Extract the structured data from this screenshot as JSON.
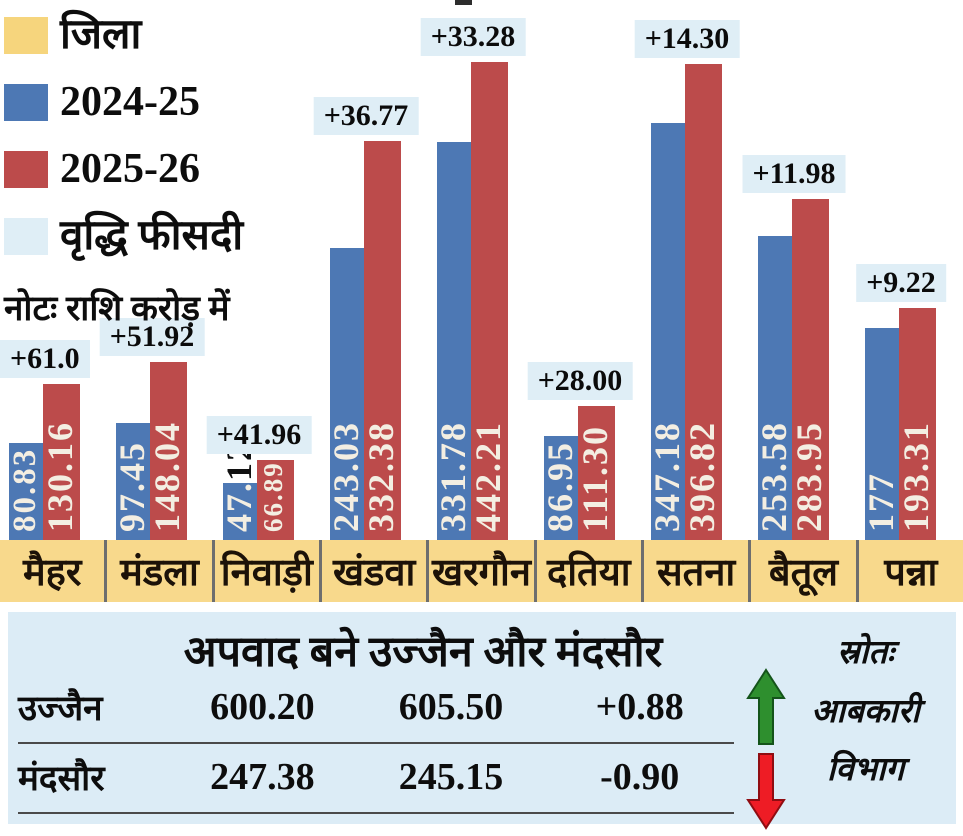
{
  "legend": {
    "items": [
      {
        "label": "जिला",
        "color": "#f6d57d"
      },
      {
        "label": "2024-25",
        "color": "#4d78b4"
      },
      {
        "label": "2025-26",
        "color": "#bc4b4b"
      },
      {
        "label": "वृद्धि फीसदी",
        "color": "#dfeef6"
      }
    ],
    "note": "नोटः राशि करोड़ में"
  },
  "chart_data": {
    "type": "bar",
    "categories": [
      "मैहर",
      "मंडला",
      "निवाड़ी",
      "खंडवा",
      "खरगौन",
      "दतिया",
      "सतना",
      "बैतूल",
      "पन्ना"
    ],
    "series": [
      {
        "name": "2024-25",
        "values": [
          80.83,
          97.45,
          47.12,
          243.03,
          331.78,
          86.95,
          347.18,
          253.58,
          177
        ],
        "labels": [
          "80.83",
          "97.45",
          "47.12",
          "243.03",
          "331.78",
          "86.95",
          "347.18",
          "253.58",
          "177"
        ]
      },
      {
        "name": "2025-26",
        "values": [
          130.16,
          148.04,
          66.89,
          332.38,
          442.21,
          111.3,
          396.82,
          283.95,
          193.31
        ],
        "labels": [
          "130.16",
          "148.04",
          "66.89",
          "332.38",
          "442.21",
          "111.30",
          "396.82",
          "283.95",
          "193.31"
        ]
      }
    ],
    "growth_percent_labels": [
      "+61.0",
      "+51.92",
      "+41.96",
      "+36.77",
      "+33.28",
      "+28.00",
      "+14.30",
      "+11.98",
      "+9.22"
    ],
    "label_overflow": {
      "district": "निवाड़ी",
      "series": "2024-25",
      "white_part": "47.",
      "black_part": "12"
    },
    "note": "राशि करोड़ में",
    "legend_position": "top-left",
    "grid": false,
    "ylim": [
      0,
      450
    ]
  },
  "exception_table": {
    "title": "अपवाद बने उज्जैन और मंदसौर",
    "rows": [
      {
        "name": "उज्जैन",
        "v2024": "600.20",
        "v2025": "605.50",
        "change": "+0.88",
        "trend": "up"
      },
      {
        "name": "मंदसौर",
        "v2024": "247.38",
        "v2025": "245.15",
        "change": "-0.90",
        "trend": "down"
      }
    ],
    "source_lines": [
      "स्रोतः",
      "आबकारी",
      "विभाग"
    ]
  },
  "colors": {
    "bar_2024": "#4d78b4",
    "bar_2025": "#bc4b4b",
    "band_yellow": "#f8d98c",
    "pct_bg": "#dfeef6",
    "panel_bg": "#dcecf6",
    "bar_label": "#f3eee2",
    "arrow_up": "#2e8f2e",
    "arrow_down": "#ee1c25"
  }
}
